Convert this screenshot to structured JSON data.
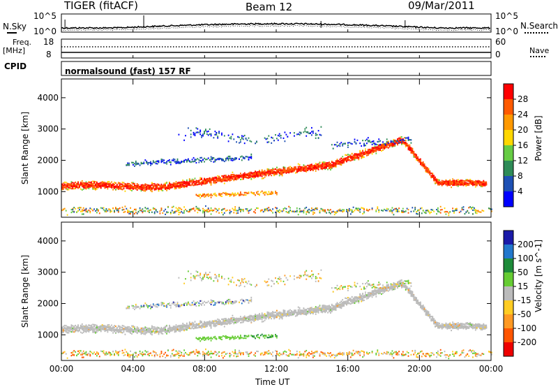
{
  "header": {
    "title": "TIGER (fitACF)",
    "beam": "Beam 12",
    "date": "09/Mar/2011"
  },
  "status_panel": {
    "nsky_label": "N.Sky",
    "nsearch_label": "N.Search",
    "noise_ticks_left": [
      "10^5",
      "10^0"
    ],
    "noise_ticks_right": [
      "10^5",
      "10^0"
    ],
    "freq_label_1": "Freq.",
    "freq_label_2": "[MHz]",
    "freq_ticks": [
      "18",
      "8"
    ],
    "nave_label": "Nave",
    "nave_ticks": [
      "60",
      "0"
    ],
    "cpid_label": "CPID",
    "cpid_value": "normalsound (fast) 157 RF"
  },
  "chart_data": [
    {
      "type": "heatmap",
      "name": "Power",
      "ylabel": "Slant Range [km]",
      "xlabel": "",
      "x_ticks": [
        "00:00",
        "04:00",
        "08:00",
        "12:00",
        "16:00",
        "20:00",
        "00:00"
      ],
      "y_ticks": [
        "1000",
        "2000",
        "3000",
        "4000"
      ],
      "ylim": [
        180,
        4600
      ],
      "xlim_hours": [
        0,
        24
      ],
      "colorbar": {
        "label": "Power [dB]",
        "ticks": [
          "4",
          "8",
          "12",
          "16",
          "20",
          "24",
          "28"
        ],
        "colors": [
          "#0000ff",
          "#1e50b4",
          "#2e8b57",
          "#66cc44",
          "#ffd700",
          "#ff9900",
          "#ff5a00",
          "#ff0000"
        ]
      }
    },
    {
      "type": "heatmap",
      "name": "Velocity",
      "ylabel": "Slant Range [km]",
      "xlabel": "Time UT",
      "x_ticks": [
        "00:00",
        "04:00",
        "08:00",
        "12:00",
        "16:00",
        "20:00",
        "00:00"
      ],
      "y_ticks": [
        "1000",
        "2000",
        "3000",
        "4000"
      ],
      "ylim": [
        180,
        4600
      ],
      "xlim_hours": [
        0,
        24
      ],
      "colorbar": {
        "label": "Velocity [m s^-1]",
        "ticks": [
          "200",
          "100",
          "50",
          "15",
          "-15",
          "-50",
          "-100",
          "-200"
        ],
        "colors": [
          "#1a1aa8",
          "#2277cc",
          "#1e8b3a",
          "#66cc33",
          "#bbbbbb",
          "#ffcc22",
          "#ff9922",
          "#ff5500",
          "#ee0000"
        ]
      }
    }
  ]
}
